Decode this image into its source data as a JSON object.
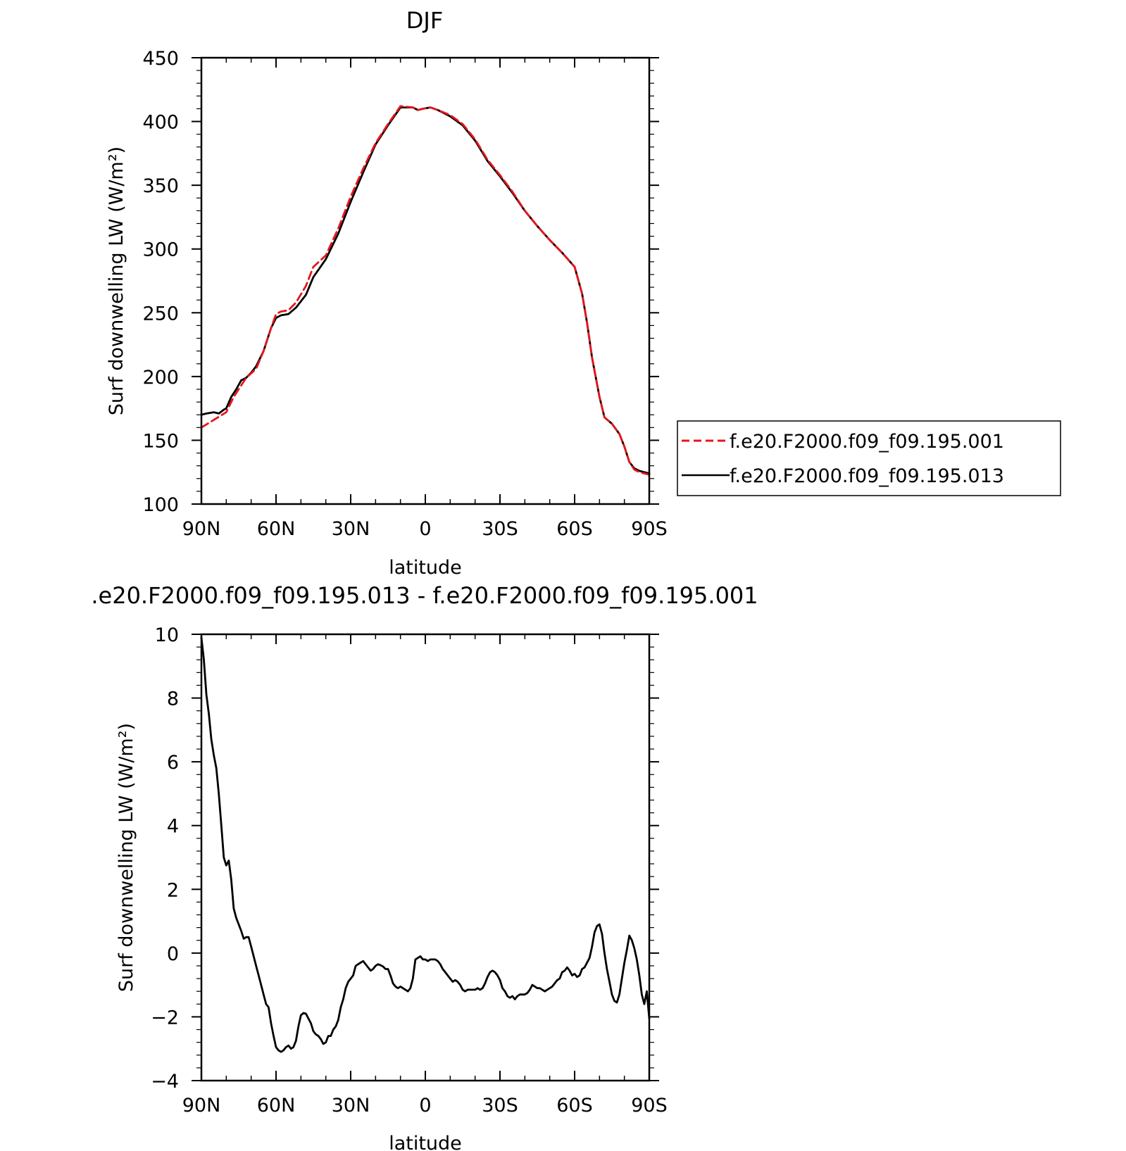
{
  "chart_data": [
    {
      "type": "line",
      "title": "DJF",
      "xlabel": "latitude",
      "ylabel": "Surf downwelling LW (W/m²)",
      "xlim": [
        90,
        -90
      ],
      "ylim": [
        100,
        450
      ],
      "x_ticks": [
        90,
        60,
        30,
        0,
        -30,
        -60,
        -90
      ],
      "x_tick_labels": [
        "90N",
        "60N",
        "30N",
        "0",
        "30S",
        "60S",
        "90S"
      ],
      "y_ticks": [
        100,
        150,
        200,
        250,
        300,
        350,
        400,
        450
      ],
      "y_tick_labels": [
        "100",
        "150",
        "200",
        "250",
        "300",
        "350",
        "400",
        "450"
      ],
      "grid": false,
      "legend_position": "outside-right",
      "series": [
        {
          "name": "f.e20.F2000.f09_f09.195.001",
          "color": "#e8141b",
          "dash": "dashed",
          "x": [
            90,
            85,
            80,
            77,
            72,
            68,
            65,
            62,
            60,
            58,
            55,
            52,
            48,
            45,
            40,
            35,
            30,
            25,
            20,
            15,
            10,
            5,
            3,
            1,
            -2,
            -5,
            -10,
            -15,
            -20,
            -25,
            -30,
            -35,
            -40,
            -45,
            -50,
            -55,
            -60,
            -63,
            -65,
            -67,
            -70,
            -72,
            -75,
            -78,
            -80,
            -82,
            -84,
            -86,
            -88,
            -90
          ],
          "y": [
            160,
            166,
            172,
            184,
            199,
            206,
            220,
            238,
            249,
            251,
            252,
            258,
            271,
            286,
            295,
            316,
            341,
            363,
            383,
            398,
            412,
            411,
            409,
            410,
            411,
            409,
            405,
            398,
            386,
            370,
            358,
            345,
            330,
            318,
            307,
            297,
            286,
            265,
            242,
            215,
            184,
            168,
            163,
            155,
            145,
            133,
            127,
            125,
            124,
            123
          ],
          "x_name": "f.e20.F2000.f09_f09.195.001"
        },
        {
          "name": "f.e20.F2000.f09_f09.195.013",
          "color": "#000000",
          "dash": "solid",
          "x": [
            90,
            88,
            85,
            83,
            81,
            80,
            78,
            76,
            74,
            72,
            70,
            68,
            65,
            62,
            60,
            58,
            55,
            52,
            48,
            45,
            40,
            35,
            30,
            25,
            20,
            15,
            10,
            5,
            3,
            1,
            -2,
            -5,
            -10,
            -15,
            -20,
            -25,
            -30,
            -35,
            -40,
            -45,
            -50,
            -55,
            -60,
            -63,
            -65,
            -67,
            -70,
            -72,
            -75,
            -78,
            -80,
            -82,
            -84,
            -86,
            -88,
            -90
          ],
          "y": [
            170,
            171,
            172,
            171,
            174,
            175,
            184,
            190,
            197,
            199,
            203,
            208,
            220,
            238,
            246,
            248,
            249,
            254,
            264,
            278,
            292,
            312,
            337,
            360,
            382,
            397,
            411,
            411,
            409,
            410,
            411,
            409,
            404,
            397,
            385,
            369,
            357,
            344,
            330,
            318,
            307,
            297,
            286,
            265,
            242,
            215,
            184,
            168,
            163,
            155,
            145,
            133,
            128,
            126,
            125,
            124
          ]
        }
      ]
    },
    {
      "type": "line",
      "title": ".e20.F2000.f09_f09.195.013 - f.e20.F2000.f09_f09.195.001",
      "xlabel": "latitude",
      "ylabel": "Surf downwelling LW (W/m²)",
      "xlim": [
        90,
        -90
      ],
      "ylim": [
        -4,
        10
      ],
      "x_ticks": [
        90,
        60,
        30,
        0,
        -30,
        -60,
        -90
      ],
      "x_tick_labels": [
        "90N",
        "60N",
        "30N",
        "0",
        "30S",
        "60S",
        "90S"
      ],
      "y_ticks": [
        -4,
        -2,
        0,
        2,
        4,
        6,
        8,
        10
      ],
      "y_tick_labels": [
        "−4",
        "−2",
        "0",
        "2",
        "4",
        "6",
        "8",
        "10"
      ],
      "grid": false,
      "series": [
        {
          "color": "#000000",
          "dash": "solid",
          "x": [
            90,
            89,
            88,
            87,
            86,
            85,
            84,
            83,
            82,
            81,
            80,
            79,
            78,
            77,
            76,
            75,
            74,
            73,
            72,
            71,
            70,
            69,
            68,
            67,
            66,
            65,
            64,
            63,
            62,
            61,
            60,
            59,
            58,
            57,
            56,
            55,
            54,
            53,
            52,
            51,
            50,
            49,
            48,
            47,
            46,
            45,
            44,
            43,
            42,
            41,
            40,
            39,
            38,
            37,
            36,
            35,
            34,
            33,
            32,
            31,
            30,
            29,
            28,
            27,
            26,
            25,
            24,
            23,
            22,
            21,
            20,
            19,
            18,
            17,
            16,
            15,
            14,
            13,
            12,
            11,
            10,
            9,
            8,
            7,
            6,
            5,
            4,
            3,
            2,
            1,
            0,
            -1,
            -2,
            -3,
            -4,
            -5,
            -6,
            -7,
            -8,
            -9,
            -10,
            -11,
            -12,
            -13,
            -14,
            -15,
            -16,
            -17,
            -18,
            -19,
            -20,
            -21,
            -22,
            -23,
            -24,
            -25,
            -26,
            -27,
            -28,
            -29,
            -30,
            -31,
            -32,
            -33,
            -34,
            -35,
            -36,
            -37,
            -38,
            -39,
            -40,
            -41,
            -42,
            -43,
            -44,
            -45,
            -46,
            -47,
            -48,
            -49,
            -50,
            -51,
            -52,
            -53,
            -54,
            -55,
            -56,
            -57,
            -58,
            -59,
            -60,
            -61,
            -62,
            -63,
            -64,
            -65,
            -66,
            -67,
            -68,
            -69,
            -70,
            -71,
            -72,
            -73,
            -74,
            -75,
            -76,
            -77,
            -78,
            -79,
            -80,
            -81,
            -82,
            -83,
            -84,
            -85,
            -86,
            -87,
            -88,
            -89,
            -90
          ],
          "y": [
            9.9,
            9.2,
            8.1,
            7.5,
            6.7,
            6.2,
            5.8,
            5.0,
            4.0,
            3.0,
            2.75,
            2.9,
            2.3,
            1.4,
            1.1,
            0.9,
            0.7,
            0.45,
            0.5,
            0.5,
            0.2,
            -0.1,
            -0.4,
            -0.7,
            -1.0,
            -1.3,
            -1.6,
            -1.7,
            -2.2,
            -2.6,
            -2.95,
            -3.05,
            -3.1,
            -3.05,
            -2.95,
            -2.9,
            -3.0,
            -2.95,
            -2.75,
            -2.3,
            -1.95,
            -1.88,
            -1.9,
            -2.05,
            -2.2,
            -2.45,
            -2.55,
            -2.6,
            -2.7,
            -2.85,
            -2.8,
            -2.6,
            -2.6,
            -2.4,
            -2.3,
            -2.1,
            -1.7,
            -1.45,
            -1.1,
            -0.9,
            -0.8,
            -0.7,
            -0.4,
            -0.35,
            -0.3,
            -0.25,
            -0.35,
            -0.45,
            -0.55,
            -0.5,
            -0.4,
            -0.35,
            -0.38,
            -0.42,
            -0.5,
            -0.5,
            -0.7,
            -0.95,
            -1.05,
            -1.1,
            -1.05,
            -1.1,
            -1.15,
            -1.2,
            -1.1,
            -0.8,
            -0.2,
            -0.15,
            -0.1,
            -0.2,
            -0.2,
            -0.25,
            -0.2,
            -0.2,
            -0.2,
            -0.25,
            -0.35,
            -0.5,
            -0.6,
            -0.7,
            -0.8,
            -0.9,
            -0.85,
            -0.9,
            -1.0,
            -1.15,
            -1.2,
            -1.15,
            -1.15,
            -1.15,
            -1.15,
            -1.1,
            -1.15,
            -1.1,
            -0.95,
            -0.75,
            -0.6,
            -0.55,
            -0.6,
            -0.7,
            -0.85,
            -1.1,
            -1.2,
            -1.35,
            -1.4,
            -1.35,
            -1.45,
            -1.35,
            -1.3,
            -1.3,
            -1.3,
            -1.25,
            -1.15,
            -1.0,
            -1.05,
            -1.1,
            -1.1,
            -1.15,
            -1.2,
            -1.15,
            -1.1,
            -1.05,
            -0.95,
            -0.85,
            -0.8,
            -0.6,
            -0.55,
            -0.45,
            -0.55,
            -0.7,
            -0.65,
            -0.75,
            -0.7,
            -0.5,
            -0.45,
            -0.3,
            -0.15,
            0.2,
            0.65,
            0.85,
            0.9,
            0.6,
            0.0,
            -0.5,
            -0.9,
            -1.3,
            -1.5,
            -1.55,
            -1.3,
            -0.8,
            -0.3,
            0.1,
            0.55,
            0.4,
            0.15,
            -0.2,
            -0.7,
            -1.3,
            -1.6,
            -1.2,
            -2.05
          ]
        }
      ]
    }
  ]
}
